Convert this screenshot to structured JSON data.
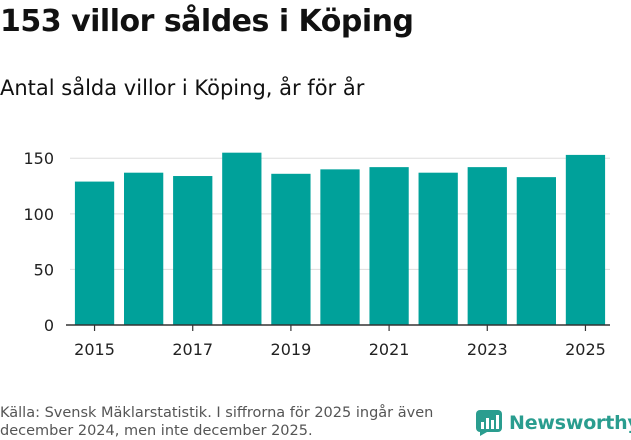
{
  "title": "153 villor såldes i Köping",
  "subtitle": "Antal sålda villor i Köping, år för år",
  "source": "Källa: Svensk Mäklarstatistik. I siffrorna för 2025 ingår även december 2024, men inte december 2025.",
  "brand": {
    "name": "Newsworthy",
    "icon": "bar-chart-logo-icon",
    "color": "#2a9d8f"
  },
  "chart_data": {
    "type": "bar",
    "x": [
      2015,
      2016,
      2017,
      2018,
      2019,
      2020,
      2021,
      2022,
      2023,
      2024,
      2025
    ],
    "values": [
      129,
      137,
      134,
      155,
      136,
      140,
      142,
      137,
      142,
      133,
      153
    ],
    "ylim": [
      0,
      170
    ],
    "yticks": [
      0,
      50,
      100,
      150
    ],
    "xticks": [
      2015,
      2017,
      2019,
      2021,
      2023,
      2025
    ],
    "xlabel": "",
    "ylabel": "",
    "grid": true,
    "bar_color": "#00a19a",
    "grid_color": "#dddddd"
  }
}
